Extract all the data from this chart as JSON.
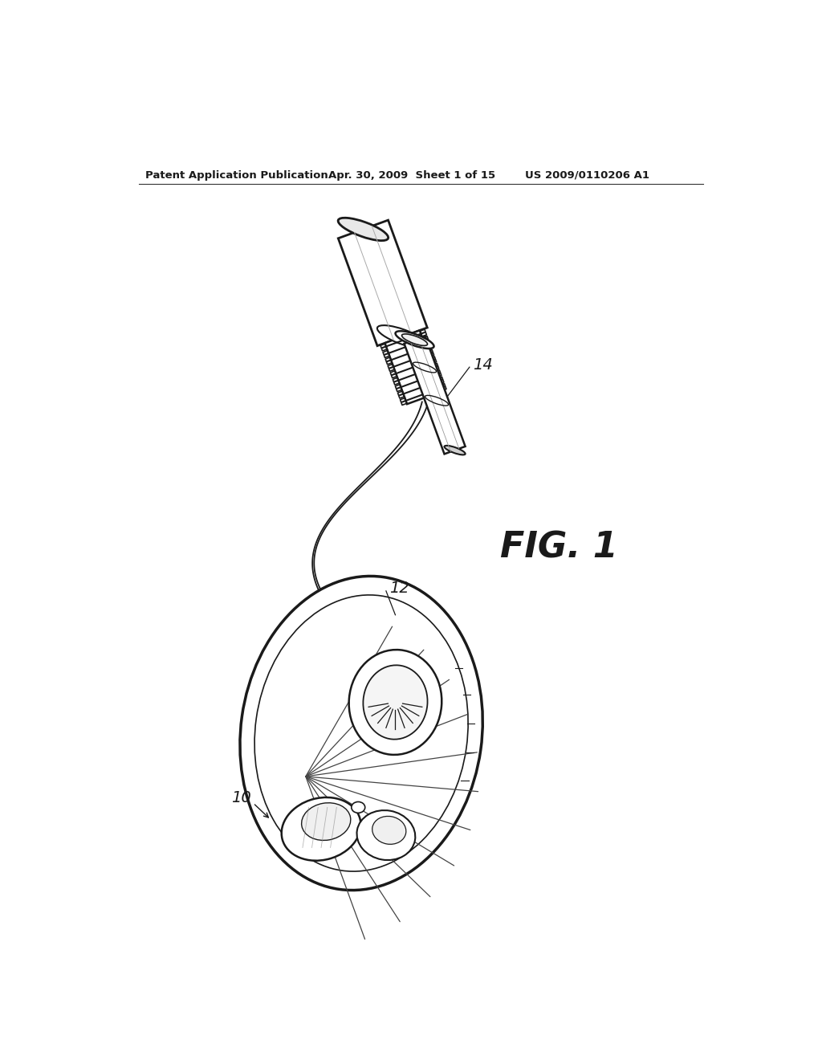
{
  "background_color": "#ffffff",
  "header_left": "Patent Application Publication",
  "header_center": "Apr. 30, 2009  Sheet 1 of 15",
  "header_right": "US 2009/0110206 A1",
  "fig_label": "FIG. 1",
  "label_10": "10",
  "label_12": "12",
  "label_14": "14",
  "line_color": "#1a1a1a"
}
